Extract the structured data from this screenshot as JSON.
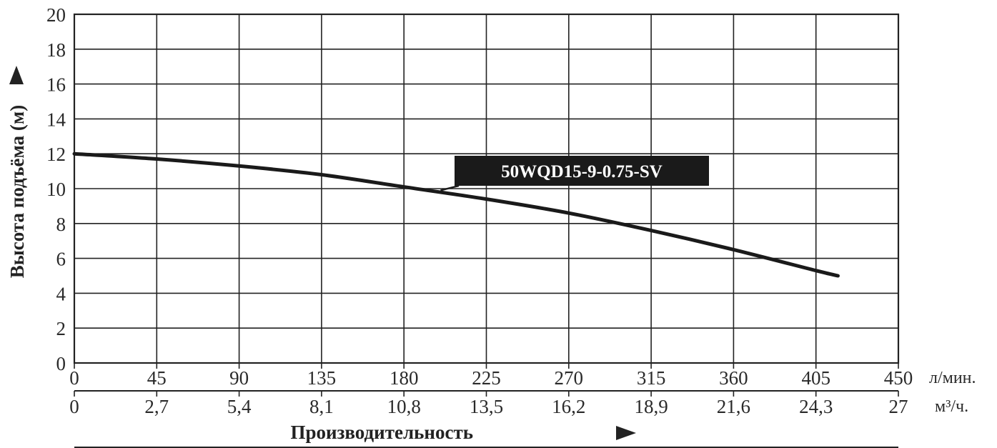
{
  "chart_data": {
    "type": "line",
    "xlabel": "Производительность",
    "ylabel": "Высота подъёма (м)",
    "xlim": [
      0,
      450
    ],
    "ylim": [
      0,
      20
    ],
    "x_ticks": [
      "0",
      "45",
      "90",
      "135",
      "180",
      "225",
      "270",
      "315",
      "360",
      "405",
      "450"
    ],
    "x_unit": "л/мин.",
    "x2_ticks": [
      "0",
      "2,7",
      "5,4",
      "8,1",
      "10,8",
      "13,5",
      "16,2",
      "18,9",
      "21,6",
      "24,3",
      "27"
    ],
    "x2_unit": "м³/ч.",
    "y_ticks": [
      "0",
      "2",
      "4",
      "6",
      "8",
      "10",
      "12",
      "14",
      "16",
      "18",
      "20"
    ],
    "grid": true,
    "series": [
      {
        "name": "50WQD15-9-0.75-SV",
        "x": [
          0,
          45,
          90,
          135,
          180,
          225,
          270,
          315,
          360,
          405,
          417
        ],
        "y": [
          12,
          11.7,
          11.3,
          10.8,
          10.1,
          9.4,
          8.6,
          7.6,
          6.5,
          5.3,
          5.0
        ]
      }
    ],
    "annotation": {
      "label": "50WQD15-9-0.75-SV",
      "x": 200,
      "y": 9.9
    }
  },
  "colors": {
    "line": "#1a1a1a",
    "grid": "#222222",
    "label_bg": "#1a1a1a"
  }
}
